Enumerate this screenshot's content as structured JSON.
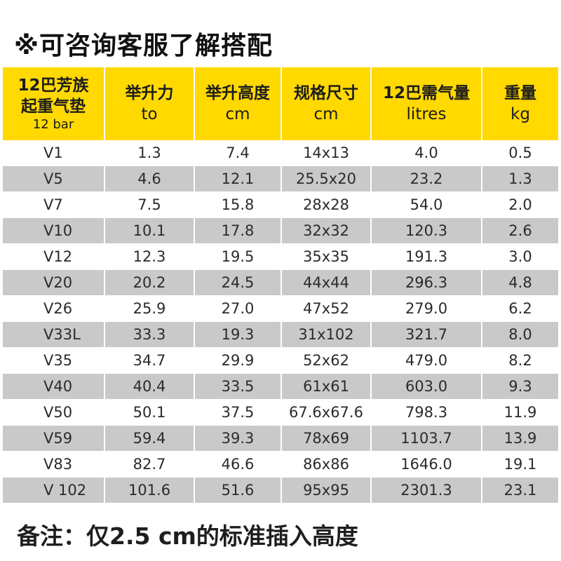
{
  "title": "※可咨询客服了解搭配",
  "table": {
    "headers": [
      {
        "line1": "12巴芳族",
        "line2": "起重气垫",
        "line3": "12 bar"
      },
      {
        "line1": "举升力",
        "line2": "to"
      },
      {
        "line1": "举升高度",
        "line2": "cm"
      },
      {
        "line1": "规格尺寸",
        "line2": "cm"
      },
      {
        "line1": "12巴需气量",
        "line2": "litres"
      },
      {
        "line1": "重量",
        "line2": "kg"
      }
    ],
    "rows": [
      [
        "V1",
        "1.3",
        "7.4",
        "14x13",
        "4.0",
        "0.5"
      ],
      [
        "V5",
        "4.6",
        "12.1",
        "25.5x20",
        "23.2",
        "1.3"
      ],
      [
        "V7",
        "7.5",
        "15.8",
        "28x28",
        "54.0",
        "2.0"
      ],
      [
        "V10",
        "10.1",
        "17.8",
        "32x32",
        "120.3",
        "2.6"
      ],
      [
        "V12",
        "12.3",
        "19.5",
        "35x35",
        "191.3",
        "3.0"
      ],
      [
        "V20",
        "20.2",
        "24.5",
        "44x44",
        "296.3",
        "4.8"
      ],
      [
        "V26",
        "25.9",
        "27.0",
        "47x52",
        "279.0",
        "6.2"
      ],
      [
        "V33L",
        "33.3",
        "19.3",
        "31x102",
        "321.7",
        "8.0"
      ],
      [
        "V35",
        "34.7",
        "29.9",
        "52x62",
        "479.0",
        "8.2"
      ],
      [
        "V40",
        "40.4",
        "33.5",
        "61x61",
        "603.0",
        "9.3"
      ],
      [
        "V50",
        "50.1",
        "37.5",
        "67.6x67.6",
        "798.3",
        "11.9"
      ],
      [
        "V59",
        "59.4",
        "39.3",
        "78x69",
        "1103.7",
        "13.9"
      ],
      [
        "V83",
        "82.7",
        "46.6",
        "86x86",
        "1646.0",
        "19.1"
      ],
      [
        "V 102",
        "101.6",
        "51.6",
        "95x95",
        "2301.3",
        "23.1"
      ]
    ]
  },
  "note": "备注：仅2.5 cm的标准插入高度",
  "colors": {
    "header_bg": "#ffd900",
    "alt_row_bg": "#c9c9c9"
  }
}
